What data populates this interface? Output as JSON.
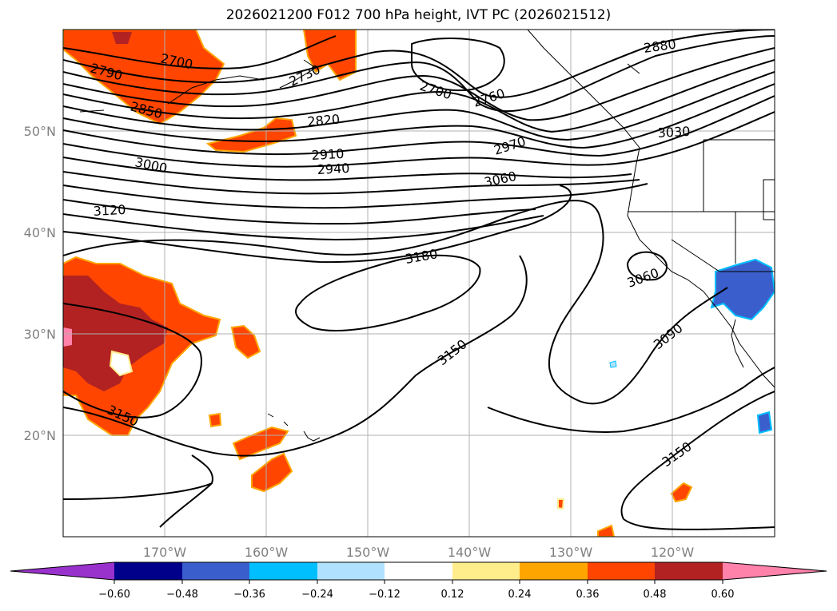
{
  "title": "2026021200 F012 700 hPa height, IVT PC (2026021512)",
  "map": {
    "lat_labels": [
      "50°N",
      "40°N",
      "30°N",
      "20°N"
    ],
    "lon_labels": [
      "170°W",
      "160°W",
      "150°W",
      "140°W",
      "130°W",
      "120°W"
    ],
    "gridlines": true,
    "contour_labels": [
      "2700",
      "2790",
      "2850",
      "2730",
      "2820",
      "2910",
      "2940",
      "3000",
      "3120",
      "2700",
      "2760",
      "2970",
      "3060",
      "2880",
      "3030",
      "3180",
      "3060",
      "3090",
      "3150",
      "3150",
      "3150"
    ]
  },
  "colorbar": {
    "ticks": [
      "−0.60",
      "−0.48",
      "−0.36",
      "−0.24",
      "−0.12",
      "0.12",
      "0.24",
      "0.36",
      "0.48",
      "0.60"
    ],
    "colors": [
      "#9932cc",
      "#00008b",
      "#3a5fcd",
      "#00bfff",
      "#b0e2ff",
      "#ffffff",
      "#ffec8b",
      "#ffa500",
      "#ff4500",
      "#b22222",
      "#ff82ab"
    ],
    "extend": "both"
  }
}
